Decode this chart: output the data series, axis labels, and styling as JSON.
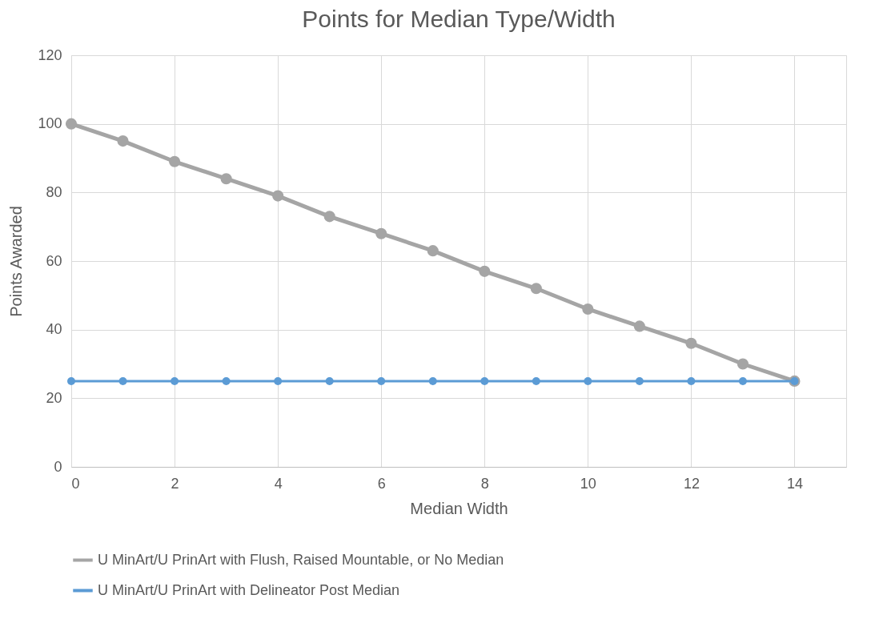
{
  "chart_data": {
    "type": "line",
    "title": "Points for Median Type/Width",
    "xlabel": "Median Width",
    "ylabel": "Points Awarded",
    "x": [
      0,
      1,
      2,
      3,
      4,
      5,
      6,
      7,
      8,
      9,
      10,
      11,
      12,
      13,
      14
    ],
    "series": [
      {
        "name": "U MinArt/U PrinArt with Flush, Raised Mountable, or No Median",
        "color": "#a5a5a5",
        "values": [
          100,
          95,
          89,
          84,
          79,
          73,
          68,
          63,
          57,
          52,
          46,
          41,
          36,
          30,
          25
        ]
      },
      {
        "name": "U MinArt/U PrinArt with Delineator Post Median",
        "color": "#5b9bd5",
        "values": [
          25,
          25,
          25,
          25,
          25,
          25,
          25,
          25,
          25,
          25,
          25,
          25,
          25,
          25,
          25
        ]
      }
    ],
    "xlim": [
      0,
      15
    ],
    "xticks": [
      0,
      2,
      4,
      6,
      8,
      10,
      12,
      14
    ],
    "ylim": [
      0,
      120
    ],
    "yticks": [
      0,
      20,
      40,
      60,
      80,
      100,
      120
    ],
    "grid": true,
    "legend": "bottom",
    "marker": "circle",
    "line_style": "solid"
  }
}
